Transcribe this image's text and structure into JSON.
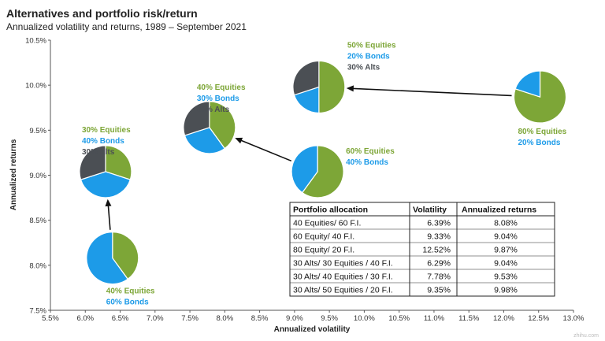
{
  "chart_data": {
    "type": "scatter",
    "title": "Alternatives and portfolio risk/return",
    "subtitle": "Annualized volatility and returns, 1989 – September 2021",
    "xlabel": "Annualized volatility",
    "ylabel": "Annualized returns",
    "xlim": [
      5.5,
      13.0
    ],
    "ylim": [
      7.5,
      10.5
    ],
    "x_ticks": [
      "5.5%",
      "6.0%",
      "6.5%",
      "7.0%",
      "7.5%",
      "8.0%",
      "8.5%",
      "9.0%",
      "9.5%",
      "10.0%",
      "10.5%",
      "11.0%",
      "11.5%",
      "12.0%",
      "12.5%",
      "13.0%"
    ],
    "y_ticks": [
      "7.5%",
      "8.0%",
      "8.5%",
      "9.0%",
      "9.5%",
      "10.0%",
      "10.5%"
    ],
    "grid": false,
    "slice_colors": {
      "equities": "#7da637",
      "bonds": "#1d9be8",
      "alts": "#4b4f54"
    },
    "points": [
      {
        "x": 6.29,
        "y": 9.04,
        "slices": [
          {
            "key": "equities",
            "value": 30
          },
          {
            "key": "bonds",
            "value": 40
          },
          {
            "key": "alts",
            "value": 30
          }
        ],
        "labels": [
          {
            "text": "30% Equities",
            "key": "equities"
          },
          {
            "text": "40% Bonds",
            "key": "bonds"
          },
          {
            "text": "30% Alts",
            "key": "alts"
          }
        ]
      },
      {
        "x": 7.78,
        "y": 9.53,
        "slices": [
          {
            "key": "equities",
            "value": 40
          },
          {
            "key": "bonds",
            "value": 30
          },
          {
            "key": "alts",
            "value": 30
          }
        ],
        "labels": [
          {
            "text": "40% Equities",
            "key": "equities"
          },
          {
            "text": "30% Bonds",
            "key": "bonds"
          },
          {
            "text": "30% Alts",
            "key": "alts"
          }
        ]
      },
      {
        "x": 9.35,
        "y": 9.98,
        "slices": [
          {
            "key": "equities",
            "value": 50
          },
          {
            "key": "bonds",
            "value": 20
          },
          {
            "key": "alts",
            "value": 30
          }
        ],
        "labels": [
          {
            "text": "50% Equities",
            "key": "equities"
          },
          {
            "text": "20% Bonds",
            "key": "bonds"
          },
          {
            "text": "30% Alts",
            "key": "alts"
          }
        ]
      },
      {
        "x": 6.39,
        "y": 8.08,
        "slices": [
          {
            "key": "equities",
            "value": 40
          },
          {
            "key": "bonds",
            "value": 60
          }
        ],
        "labels": [
          {
            "text": "40% Equities",
            "key": "equities"
          },
          {
            "text": "60% Bonds",
            "key": "bonds"
          }
        ]
      },
      {
        "x": 9.33,
        "y": 9.04,
        "slices": [
          {
            "key": "equities",
            "value": 60
          },
          {
            "key": "bonds",
            "value": 40
          }
        ],
        "labels": [
          {
            "text": "60% Equities",
            "key": "equities"
          },
          {
            "text": "40% Bonds",
            "key": "bonds"
          }
        ]
      },
      {
        "x": 12.52,
        "y": 9.87,
        "slices": [
          {
            "key": "equities",
            "value": 80
          },
          {
            "key": "bonds",
            "value": 20
          }
        ],
        "labels": [
          {
            "text": "80% Equities",
            "key": "equities"
          },
          {
            "text": "20% Bonds",
            "key": "bonds"
          }
        ]
      }
    ],
    "arrows": [
      {
        "from": 3,
        "to": 0
      },
      {
        "from": 4,
        "to": 1
      },
      {
        "from": 5,
        "to": 2
      }
    ],
    "table": {
      "columns": [
        "Portfolio allocation",
        "Volatility",
        "Annualized returns"
      ],
      "rows": [
        [
          "40 Equities/ 60 F.I.",
          "6.39%",
          "8.08%"
        ],
        [
          "60 Equity/ 40 F.I.",
          "9.33%",
          "9.04%"
        ],
        [
          "80 Equity/ 20 F.I.",
          "12.52%",
          "9.87%"
        ],
        [
          "30 Alts/ 30 Equities / 40 F.I.",
          "6.29%",
          "9.04%"
        ],
        [
          "30 Alts/ 40 Equities / 30 F.I.",
          "7.78%",
          "9.53%"
        ],
        [
          "30 Alts/ 50 Equities / 20 F.I.",
          "9.35%",
          "9.98%"
        ]
      ]
    },
    "watermark": "zhihu.com"
  }
}
